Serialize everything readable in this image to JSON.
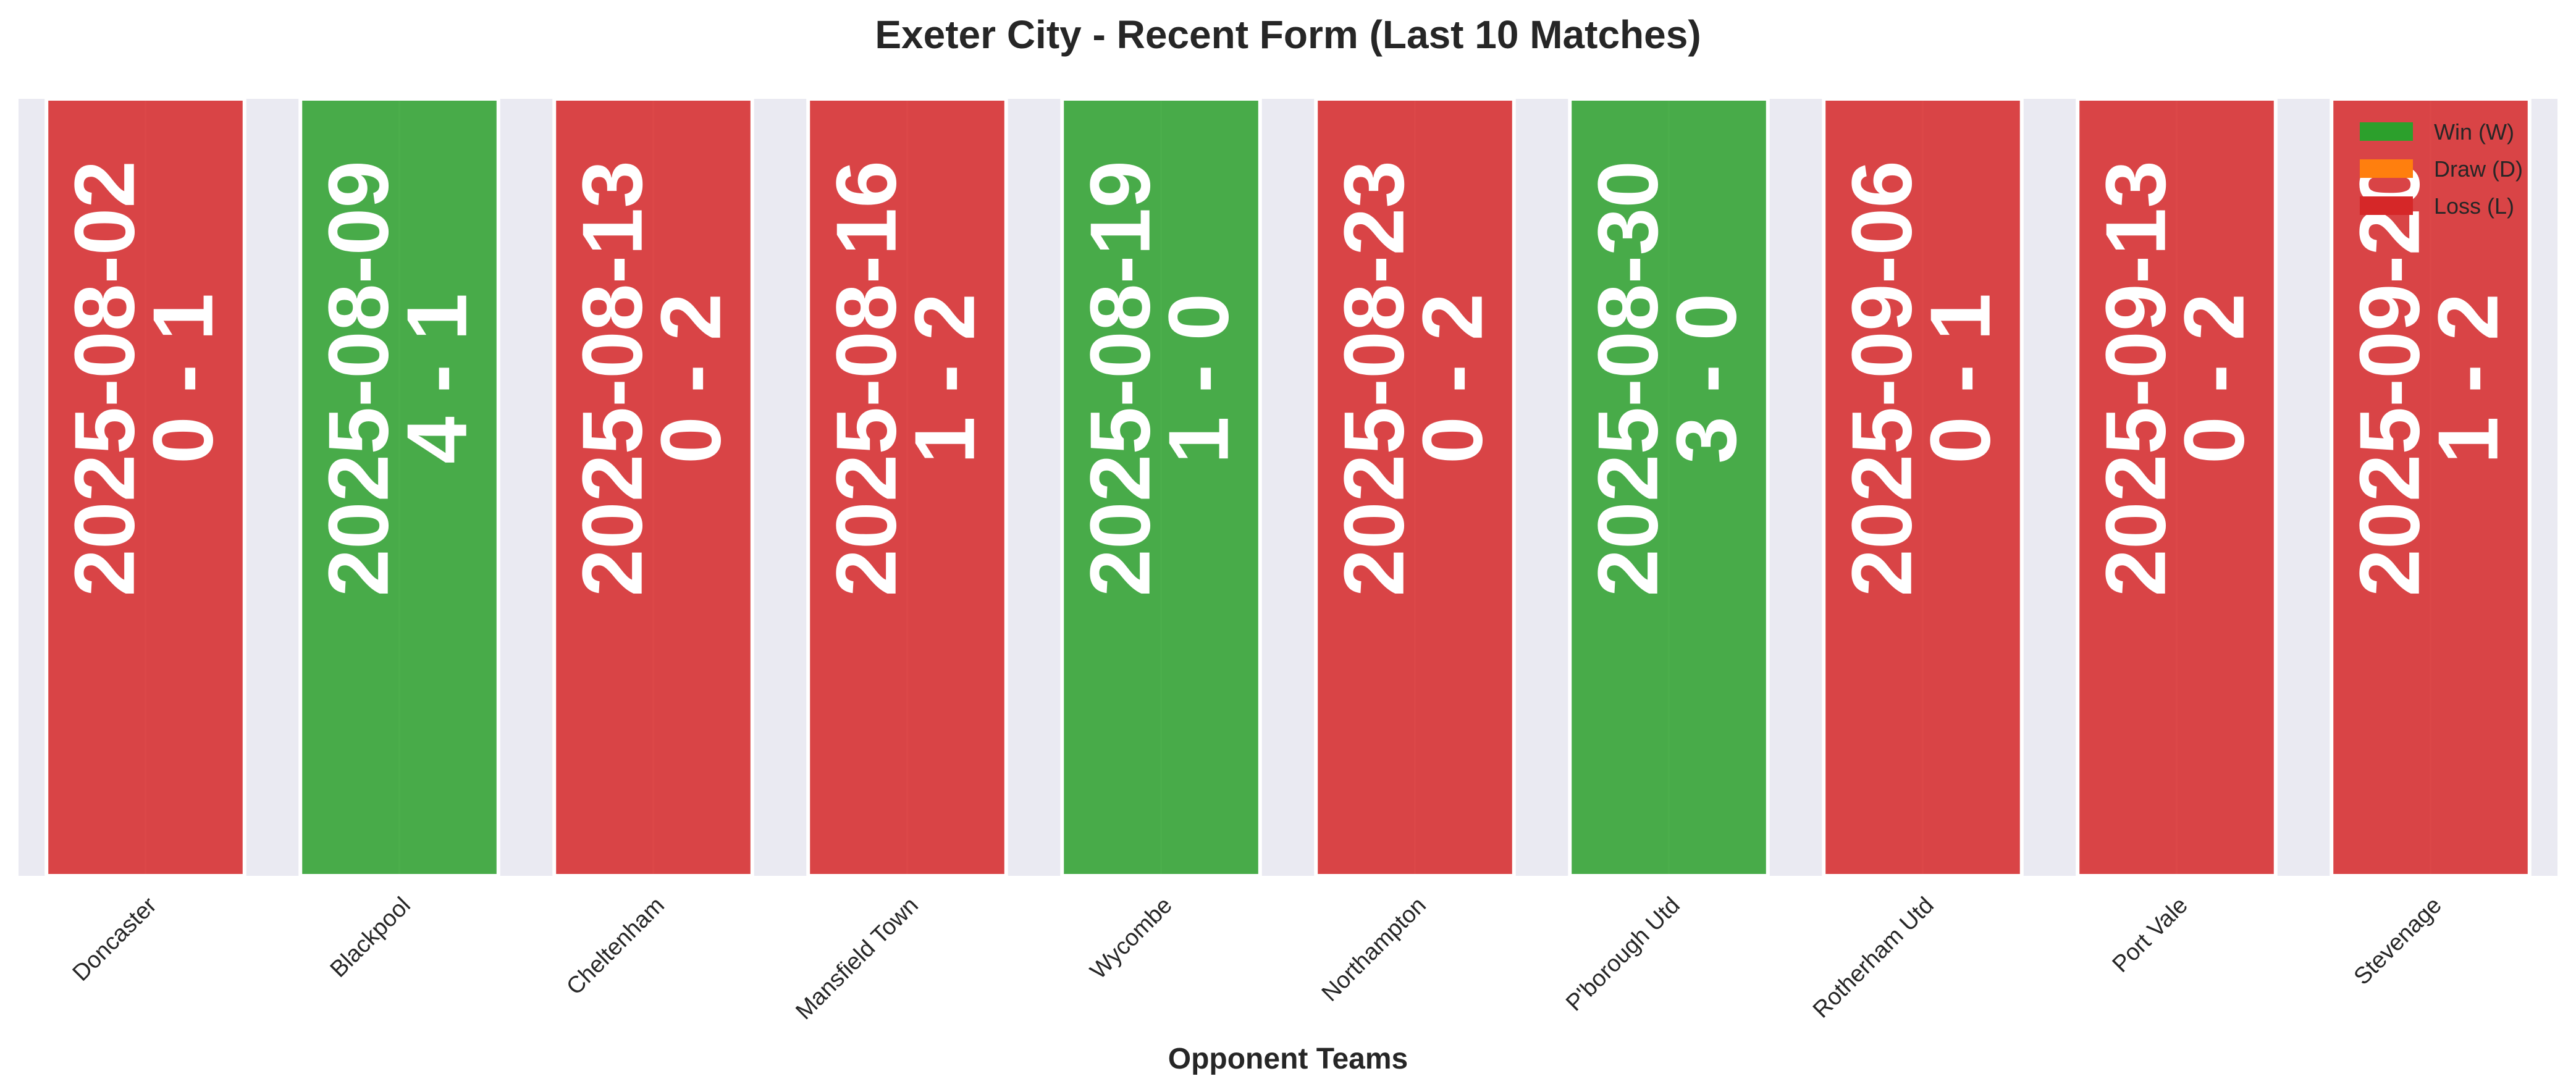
{
  "chart_data": {
    "type": "bar",
    "title": "Exeter City - Recent Form (Last 10 Matches)",
    "xlabel": "Opponent Teams",
    "ylabel": "",
    "grid": true,
    "legend_placement": "top-right",
    "categories": [
      "Doncaster",
      "Blackpool",
      "Cheltenham",
      "Mansfield Town",
      "Wycombe",
      "Northampton",
      "P'borough Utd",
      "Rotherham Utd",
      "Port Vale",
      "Stevenage"
    ],
    "values": [
      1,
      1,
      1,
      1,
      1,
      1,
      1,
      1,
      1,
      1
    ],
    "ylim": [
      0,
      1
    ],
    "results": [
      "L",
      "W",
      "L",
      "L",
      "W",
      "L",
      "W",
      "L",
      "L",
      "L"
    ],
    "dates": [
      "2025-08-02",
      "2025-08-09",
      "2025-08-13",
      "2025-08-16",
      "2025-08-19",
      "2025-08-23",
      "2025-08-30",
      "2025-09-06",
      "2025-09-13",
      "2025-09-20"
    ],
    "scores": [
      "0 - 1",
      "4 - 1",
      "0 - 2",
      "1 - 2",
      "1 - 0",
      "0 - 2",
      "3 - 0",
      "0 - 1",
      "0 - 2",
      "1 - 2"
    ],
    "legend": [
      {
        "key": "W",
        "label": "Win (W)",
        "color": "#2ca02c"
      },
      {
        "key": "D",
        "label": "Draw (D)",
        "color": "#ff7f0e"
      },
      {
        "key": "L",
        "label": "Loss (L)",
        "color": "#d62728"
      }
    ],
    "colors": {
      "W": "#2ca02c",
      "D": "#ff7f0e",
      "L": "#d62728",
      "axes_background": "#eaeaf2",
      "grid": "#ffffff"
    }
  }
}
